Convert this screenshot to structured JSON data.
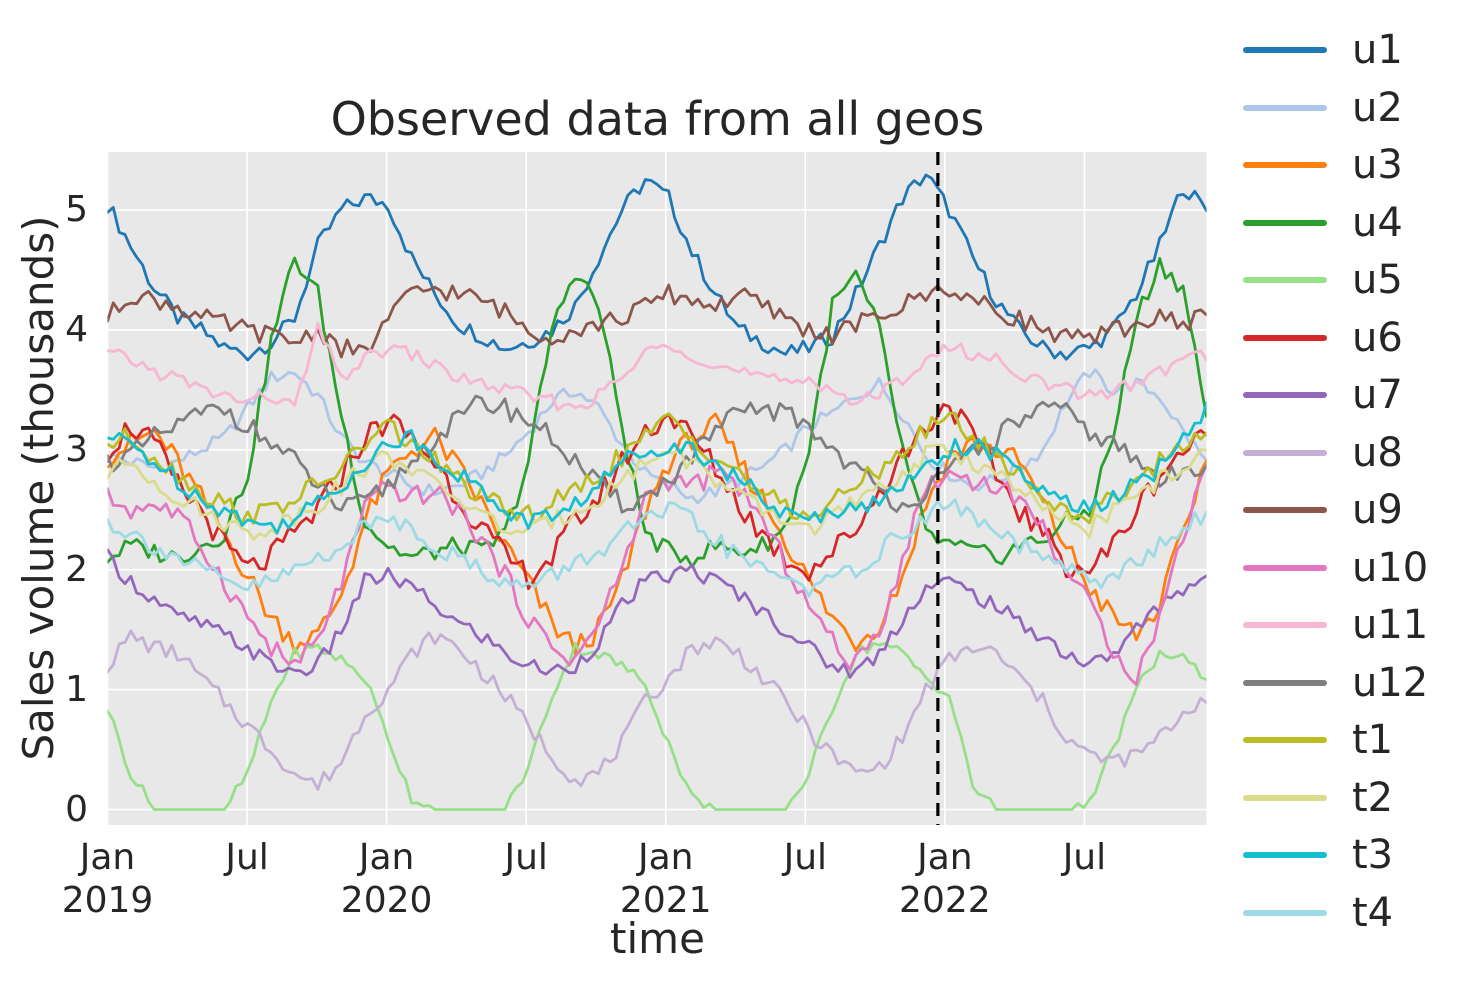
{
  "figure": {
    "title": "Observed data from all geos",
    "x_axis_label": "time",
    "y_axis_label": "Sales volume (thousands)"
  },
  "colors": {
    "figure_background": "#ffffff",
    "plot_background": "#e8e8e8",
    "grid": "#ffffff",
    "text": "#262626",
    "event_line": "#000000"
  },
  "y_axis": {
    "tick_labels": [
      "0",
      "1",
      "2",
      "3",
      "4",
      "5"
    ],
    "tick_values": [
      0,
      1,
      2,
      3,
      4,
      5
    ]
  },
  "x_axis": {
    "ticks": [
      {
        "month": "Jan",
        "year": "2019",
        "month_index": 0
      },
      {
        "month": "Jul",
        "year": "",
        "month_index": 6
      },
      {
        "month": "Jan",
        "year": "2020",
        "month_index": 12
      },
      {
        "month": "Jul",
        "year": "",
        "month_index": 18
      },
      {
        "month": "Jan",
        "year": "2021",
        "month_index": 24
      },
      {
        "month": "Jul",
        "year": "",
        "month_index": 30
      },
      {
        "month": "Jan",
        "year": "2022",
        "month_index": 36
      },
      {
        "month": "Jul",
        "year": "",
        "month_index": 42
      }
    ]
  },
  "event_line": {
    "month_index": 35.7,
    "style": "dashed",
    "color": "#000000"
  },
  "chart_data": {
    "type": "line",
    "title": "Observed data from all geos",
    "xlabel": "time",
    "ylabel": "Sales volume (thousands)",
    "x_unit": "monthly samples, Jan 2019 - Dec 2022",
    "ylim": [
      -0.13,
      5.48
    ],
    "grid": "on",
    "legend_position": "right",
    "x_months": [
      "2019-01",
      "2019-02",
      "2019-03",
      "2019-04",
      "2019-05",
      "2019-06",
      "2019-07",
      "2019-08",
      "2019-09",
      "2019-10",
      "2019-11",
      "2019-12",
      "2020-01",
      "2020-02",
      "2020-03",
      "2020-04",
      "2020-05",
      "2020-06",
      "2020-07",
      "2020-08",
      "2020-09",
      "2020-10",
      "2020-11",
      "2020-12",
      "2021-01",
      "2021-02",
      "2021-03",
      "2021-04",
      "2021-05",
      "2021-06",
      "2021-07",
      "2021-08",
      "2021-09",
      "2021-10",
      "2021-11",
      "2021-12",
      "2022-01",
      "2022-02",
      "2022-03",
      "2022-04",
      "2022-05",
      "2022-06",
      "2022-07",
      "2022-08",
      "2022-09",
      "2022-10",
      "2022-11",
      "2022-12"
    ],
    "series": [
      {
        "name": "u1",
        "color": "#1f77b4",
        "noise": 0.07,
        "values": [
          5.05,
          4.7,
          4.35,
          4.1,
          4.0,
          3.85,
          3.8,
          3.9,
          4.1,
          4.7,
          5.0,
          5.1,
          5.05,
          4.6,
          4.3,
          4.05,
          3.95,
          3.85,
          3.9,
          4.0,
          4.2,
          4.6,
          5.0,
          5.25,
          5.1,
          4.65,
          4.3,
          4.0,
          3.9,
          3.8,
          3.85,
          3.95,
          4.3,
          4.7,
          5.1,
          5.3,
          5.0,
          4.6,
          4.25,
          4.0,
          3.85,
          3.8,
          3.85,
          4.0,
          4.3,
          4.7,
          5.2,
          5.0
        ]
      },
      {
        "name": "u2",
        "color": "#aec7e8",
        "noise": 0.06,
        "values": [
          2.95,
          2.9,
          2.85,
          2.9,
          3.0,
          3.1,
          3.35,
          3.6,
          3.65,
          3.45,
          3.1,
          2.9,
          2.8,
          2.7,
          2.65,
          2.7,
          2.8,
          2.95,
          3.15,
          3.4,
          3.5,
          3.35,
          3.05,
          2.8,
          2.7,
          2.6,
          2.65,
          2.75,
          2.85,
          3.0,
          3.2,
          3.3,
          3.45,
          3.55,
          3.3,
          2.95,
          2.8,
          2.7,
          2.75,
          2.85,
          3.0,
          3.4,
          3.65,
          3.5,
          3.55,
          3.45,
          3.15,
          2.9
        ]
      },
      {
        "name": "u3",
        "color": "#ff7f0e",
        "noise": 0.1,
        "values": [
          2.95,
          3.05,
          3.15,
          2.9,
          2.6,
          2.3,
          1.95,
          1.6,
          1.4,
          1.45,
          1.8,
          2.4,
          2.8,
          3.0,
          3.1,
          2.85,
          2.55,
          2.2,
          1.9,
          1.55,
          1.35,
          1.5,
          1.9,
          2.5,
          2.9,
          3.1,
          3.2,
          2.9,
          2.6,
          2.25,
          1.9,
          1.6,
          1.4,
          1.55,
          1.95,
          2.55,
          2.95,
          3.05,
          3.0,
          2.9,
          2.55,
          2.2,
          1.85,
          1.6,
          1.45,
          1.7,
          2.3,
          2.95
        ]
      },
      {
        "name": "u4",
        "color": "#2ca02c",
        "noise": 0.08,
        "values": [
          2.1,
          2.2,
          2.15,
          2.1,
          2.2,
          2.3,
          2.8,
          3.9,
          4.6,
          4.3,
          3.3,
          2.4,
          2.2,
          2.1,
          2.15,
          2.2,
          2.15,
          2.3,
          2.9,
          4.0,
          4.5,
          4.2,
          3.2,
          2.3,
          2.15,
          2.1,
          2.2,
          2.15,
          2.2,
          2.35,
          3.0,
          4.2,
          4.45,
          4.0,
          3.0,
          2.3,
          2.2,
          2.15,
          2.1,
          2.2,
          2.25,
          2.4,
          2.5,
          3.1,
          4.1,
          4.55,
          4.35,
          3.3
        ]
      },
      {
        "name": "u5",
        "color": "#98df8a",
        "noise": 0.05,
        "values": [
          0.85,
          0.3,
          0.0,
          0.0,
          0.0,
          0.0,
          0.3,
          0.9,
          1.3,
          1.35,
          1.25,
          1.1,
          0.6,
          0.1,
          0.0,
          0.0,
          0.0,
          0.0,
          0.35,
          0.95,
          1.35,
          1.3,
          1.2,
          1.05,
          0.55,
          0.1,
          0.0,
          0.0,
          0.0,
          0.0,
          0.3,
          0.85,
          1.3,
          1.4,
          1.3,
          1.1,
          0.95,
          0.2,
          0.0,
          0.0,
          0.0,
          0.0,
          0.05,
          0.5,
          1.0,
          1.3,
          1.25,
          1.1
        ]
      },
      {
        "name": "u6",
        "color": "#d62728",
        "noise": 0.11,
        "values": [
          3.0,
          3.2,
          3.05,
          2.7,
          2.5,
          2.2,
          2.0,
          2.1,
          2.3,
          2.5,
          2.8,
          3.1,
          3.25,
          3.1,
          2.9,
          2.6,
          2.35,
          2.1,
          1.95,
          2.1,
          2.4,
          2.6,
          2.9,
          3.15,
          3.3,
          3.1,
          2.85,
          2.55,
          2.3,
          2.1,
          2.0,
          2.15,
          2.35,
          2.65,
          2.95,
          3.2,
          3.4,
          3.1,
          2.8,
          2.5,
          2.3,
          2.05,
          2.0,
          2.2,
          2.5,
          2.8,
          3.0,
          3.1
        ]
      },
      {
        "name": "u7",
        "color": "#9467bd",
        "noise": 0.07,
        "values": [
          2.1,
          1.9,
          1.75,
          1.6,
          1.55,
          1.45,
          1.35,
          1.2,
          1.15,
          1.2,
          1.5,
          1.9,
          1.95,
          1.85,
          1.7,
          1.55,
          1.45,
          1.3,
          1.2,
          1.15,
          1.2,
          1.4,
          1.7,
          1.9,
          1.95,
          2.0,
          1.9,
          1.8,
          1.65,
          1.5,
          1.35,
          1.2,
          1.15,
          1.3,
          1.6,
          1.85,
          1.9,
          1.8,
          1.7,
          1.55,
          1.45,
          1.3,
          1.2,
          1.3,
          1.5,
          1.7,
          1.85,
          1.95
        ]
      },
      {
        "name": "u8",
        "color": "#c5b0d5",
        "noise": 0.07,
        "values": [
          1.2,
          1.45,
          1.35,
          1.3,
          1.1,
          0.9,
          0.7,
          0.5,
          0.3,
          0.2,
          0.4,
          0.8,
          1.0,
          1.3,
          1.45,
          1.35,
          1.15,
          0.95,
          0.7,
          0.45,
          0.25,
          0.3,
          0.55,
          0.9,
          1.1,
          1.35,
          1.4,
          1.3,
          1.1,
          0.9,
          0.65,
          0.45,
          0.3,
          0.35,
          0.6,
          1.0,
          1.25,
          1.35,
          1.3,
          1.1,
          0.9,
          0.6,
          0.45,
          0.4,
          0.45,
          0.6,
          0.8,
          0.95
        ]
      },
      {
        "name": "u9",
        "color": "#8c564b",
        "noise": 0.08,
        "values": [
          4.1,
          4.3,
          4.25,
          4.2,
          4.1,
          4.05,
          4.0,
          3.95,
          3.9,
          4.0,
          3.85,
          3.8,
          4.1,
          4.3,
          4.35,
          4.3,
          4.25,
          4.15,
          4.0,
          3.95,
          4.0,
          4.05,
          4.1,
          4.2,
          4.3,
          4.25,
          4.2,
          4.3,
          4.2,
          4.1,
          4.0,
          3.95,
          4.05,
          4.1,
          4.2,
          4.3,
          4.35,
          4.25,
          4.15,
          4.1,
          4.0,
          3.95,
          3.9,
          4.0,
          4.05,
          4.1,
          4.05,
          4.15
        ]
      },
      {
        "name": "u10",
        "color": "#e377c2",
        "noise": 0.09,
        "values": [
          2.6,
          2.5,
          2.55,
          2.45,
          2.2,
          1.9,
          1.6,
          1.35,
          1.2,
          1.4,
          1.9,
          2.5,
          2.7,
          2.6,
          2.65,
          2.5,
          2.25,
          1.95,
          1.6,
          1.35,
          1.25,
          1.55,
          2.0,
          2.6,
          2.75,
          2.7,
          2.8,
          2.7,
          2.4,
          2.05,
          1.7,
          1.4,
          1.2,
          1.5,
          2.1,
          2.7,
          2.8,
          2.75,
          2.7,
          2.6,
          2.35,
          2.0,
          1.7,
          1.35,
          1.1,
          1.6,
          2.3,
          2.9
        ]
      },
      {
        "name": "u11",
        "color": "#f7b6d2",
        "noise": 0.06,
        "values": [
          3.8,
          3.75,
          3.65,
          3.6,
          3.5,
          3.45,
          3.4,
          3.45,
          3.35,
          4.0,
          3.6,
          3.75,
          3.85,
          3.8,
          3.7,
          3.6,
          3.55,
          3.5,
          3.45,
          3.4,
          3.35,
          3.45,
          3.6,
          3.8,
          3.9,
          3.8,
          3.7,
          3.65,
          3.6,
          3.55,
          3.6,
          3.5,
          3.4,
          3.45,
          3.6,
          3.75,
          3.85,
          3.8,
          3.75,
          3.65,
          3.55,
          3.5,
          3.45,
          3.5,
          3.55,
          3.65,
          3.75,
          3.8
        ]
      },
      {
        "name": "u12",
        "color": "#7f7f7f",
        "noise": 0.09,
        "values": [
          2.9,
          2.95,
          3.1,
          3.2,
          3.3,
          3.35,
          3.2,
          3.05,
          2.9,
          2.7,
          2.5,
          2.55,
          2.7,
          2.9,
          3.1,
          3.25,
          3.4,
          3.35,
          3.25,
          3.1,
          2.9,
          2.7,
          2.55,
          2.6,
          2.75,
          2.95,
          3.15,
          3.3,
          3.35,
          3.3,
          3.2,
          3.0,
          2.85,
          2.65,
          2.55,
          2.65,
          2.8,
          3.0,
          3.1,
          3.25,
          3.35,
          3.3,
          3.15,
          3.05,
          2.9,
          2.75,
          2.8,
          2.9
        ]
      },
      {
        "name": "t1",
        "color": "#bcbd22",
        "noise": 0.09,
        "values": [
          3.05,
          3.1,
          2.95,
          2.8,
          2.65,
          2.55,
          2.45,
          2.5,
          2.6,
          2.7,
          2.85,
          3.05,
          3.2,
          3.05,
          2.9,
          2.75,
          2.6,
          2.5,
          2.45,
          2.55,
          2.65,
          2.8,
          2.95,
          3.1,
          3.25,
          3.1,
          2.95,
          2.8,
          2.65,
          2.5,
          2.45,
          2.55,
          2.7,
          2.85,
          3.0,
          3.15,
          3.3,
          3.1,
          2.95,
          2.8,
          2.6,
          2.5,
          2.45,
          2.6,
          2.75,
          2.9,
          3.05,
          3.2
        ]
      },
      {
        "name": "t2",
        "color": "#dbdb8d",
        "noise": 0.08,
        "values": [
          2.8,
          2.9,
          2.75,
          2.6,
          2.5,
          2.4,
          2.3,
          2.35,
          2.45,
          2.55,
          2.7,
          2.85,
          2.95,
          2.85,
          2.7,
          2.6,
          2.45,
          2.35,
          2.3,
          2.4,
          2.5,
          2.6,
          2.75,
          2.9,
          3.0,
          2.9,
          2.75,
          2.6,
          2.5,
          2.4,
          2.35,
          2.45,
          2.55,
          2.65,
          2.8,
          2.95,
          3.0,
          2.9,
          2.8,
          2.65,
          2.5,
          2.4,
          2.35,
          2.5,
          2.6,
          2.75,
          2.85,
          2.95
        ]
      },
      {
        "name": "t3",
        "color": "#17becf",
        "noise": 0.08,
        "values": [
          3.1,
          3.05,
          2.9,
          2.75,
          2.6,
          2.5,
          2.4,
          2.35,
          2.45,
          2.55,
          2.7,
          2.9,
          3.05,
          3.1,
          2.95,
          2.8,
          2.65,
          2.5,
          2.4,
          2.45,
          2.55,
          2.7,
          2.9,
          3.0,
          3.05,
          3.0,
          2.9,
          2.75,
          2.6,
          2.45,
          2.4,
          2.5,
          2.55,
          2.55,
          2.7,
          2.9,
          3.0,
          3.05,
          2.95,
          2.8,
          2.65,
          2.55,
          2.5,
          2.6,
          2.7,
          2.85,
          3.1,
          3.35
        ]
      },
      {
        "name": "t4",
        "color": "#9edae5",
        "noise": 0.08,
        "values": [
          2.4,
          2.3,
          2.2,
          2.1,
          2.0,
          1.9,
          1.85,
          1.9,
          2.0,
          2.1,
          2.2,
          2.35,
          2.45,
          2.35,
          2.2,
          2.1,
          2.0,
          1.9,
          1.85,
          1.95,
          2.05,
          2.15,
          2.3,
          2.4,
          2.5,
          2.4,
          2.25,
          2.1,
          2.0,
          1.95,
          1.85,
          1.9,
          2.0,
          2.15,
          2.3,
          2.45,
          2.55,
          2.45,
          2.3,
          2.2,
          2.1,
          2.0,
          1.9,
          1.95,
          2.05,
          2.2,
          2.35,
          2.45
        ]
      }
    ]
  }
}
